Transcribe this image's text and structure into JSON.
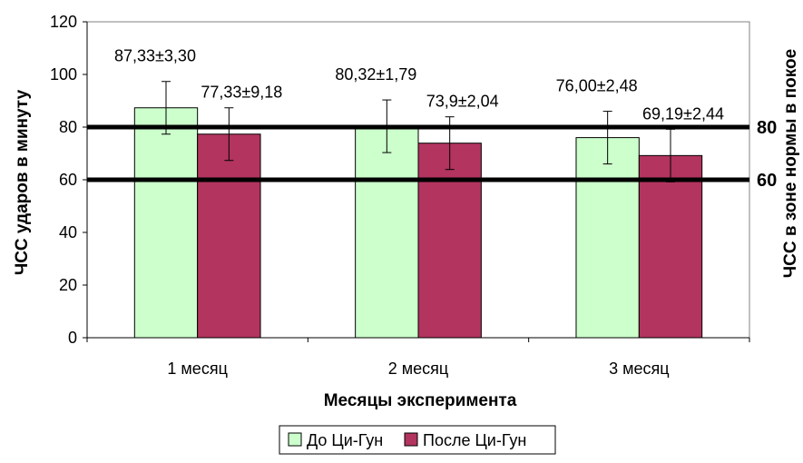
{
  "chart_data": {
    "type": "bar",
    "categories": [
      "1 месяц",
      "2 месяц",
      "3 месяц"
    ],
    "series": [
      {
        "name": "До Ци-Гун",
        "color": "#ccffcc",
        "values": [
          87.33,
          80.32,
          76.0
        ],
        "errors": [
          10,
          10,
          10
        ],
        "labels": [
          "87,33±3,30",
          "80,32±1,79",
          "76,00±2,48"
        ]
      },
      {
        "name": "После  Ци-Гун",
        "color": "#b2345f",
        "values": [
          77.33,
          73.9,
          69.19
        ],
        "errors": [
          10,
          10,
          10
        ],
        "labels": [
          "77,33±9,18",
          "73,9±2,04",
          "69,19±2,44"
        ]
      }
    ],
    "xlabel": "Месяцы эксперимента",
    "ylabel": "ЧСС ударов в минуту",
    "y2label": "ЧСС в зоне нормы в покое",
    "ylim": [
      0,
      120
    ],
    "yticks": [
      0,
      20,
      40,
      60,
      80,
      100,
      120
    ],
    "reference_lines": [
      {
        "value": 80,
        "label": "80"
      },
      {
        "value": 60,
        "label": "60"
      }
    ],
    "grid": false,
    "legend_position": "bottom"
  }
}
